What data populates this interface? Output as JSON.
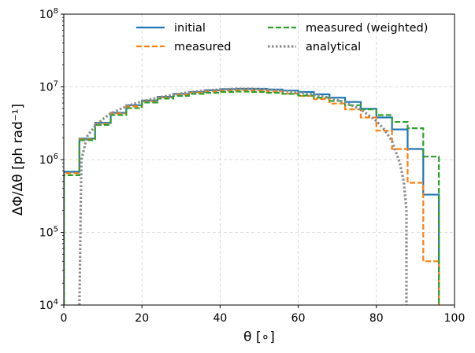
{
  "chart_data": {
    "type": "line",
    "plot_style": "step",
    "xlabel": "θ [∘]",
    "ylabel": "ΔΦ/Δθ  [ph rad⁻¹]",
    "xlim": [
      0,
      100
    ],
    "ylim": [
      10000,
      100000000
    ],
    "yscale": "log",
    "grid": true,
    "legend_position": "top-center",
    "x_ticks": [
      {
        "value": 0,
        "label": "0"
      },
      {
        "value": 20,
        "label": "20"
      },
      {
        "value": 40,
        "label": "40"
      },
      {
        "value": 60,
        "label": "60"
      },
      {
        "value": 80,
        "label": "80"
      },
      {
        "value": 100,
        "label": "100"
      }
    ],
    "y_ticks": [
      {
        "value": 10000,
        "base": "10",
        "exp": "4"
      },
      {
        "value": 100000,
        "base": "10",
        "exp": "5"
      },
      {
        "value": 1000000,
        "base": "10",
        "exp": "6"
      },
      {
        "value": 10000000,
        "base": "10",
        "exp": "7"
      },
      {
        "value": 100000000,
        "base": "10",
        "exp": "8"
      }
    ],
    "bin_edges": [
      0,
      4,
      8,
      12,
      16,
      20,
      24,
      28,
      32,
      36,
      40,
      44,
      48,
      52,
      56,
      60,
      64,
      68,
      72,
      76,
      80,
      84,
      88,
      92,
      96
    ],
    "series": [
      {
        "name": "initial",
        "color": "#1f77b4",
        "dash": "solid",
        "values": [
          680000,
          1950000,
          3200000,
          4400000,
          5600000,
          6500000,
          7300000,
          8000000,
          8500000,
          9000000,
          9300000,
          9400000,
          9400000,
          9200000,
          8900000,
          8500000,
          7900000,
          7100000,
          6200000,
          5000000,
          3800000,
          2600000,
          1400000,
          330000,
          25000
        ]
      },
      {
        "name": "measured",
        "color": "#ff7f0e",
        "dash": "dashed",
        "values": [
          650000,
          1900000,
          3100000,
          4300000,
          5400000,
          6300000,
          7100000,
          7800000,
          8300000,
          8700000,
          8900000,
          9000000,
          8900000,
          8600000,
          8100000,
          7500000,
          6800000,
          5900000,
          4900000,
          3800000,
          2500000,
          1400000,
          480000,
          40000,
          null
        ]
      },
      {
        "name": "measured (weighted)",
        "color": "#2ca02c",
        "dash": "dashed",
        "values": [
          610000,
          1850000,
          3000000,
          4100000,
          5100000,
          6100000,
          6900000,
          7500000,
          8000000,
          8300000,
          8500000,
          8600000,
          8500000,
          8300000,
          8000000,
          7600000,
          7100000,
          6400000,
          5600000,
          4900000,
          4100000,
          3300000,
          2700000,
          1100000,
          null
        ]
      },
      {
        "name": "analytical",
        "color": "#8c8c8c",
        "dash": "dotted",
        "type": "curve",
        "x": [
          4,
          4.5,
          6,
          8,
          10,
          12,
          16,
          20,
          24,
          28,
          32,
          36,
          40,
          44,
          48,
          52,
          56,
          60,
          64,
          68,
          72,
          76,
          80,
          82,
          84,
          86,
          87,
          87.7,
          87.7
        ],
        "values": [
          10000,
          1000000,
          2100000,
          2900000,
          3600000,
          4300000,
          5400000,
          6300000,
          7100000,
          7800000,
          8400000,
          8900000,
          9200000,
          9400000,
          9400000,
          9200000,
          8900000,
          8400000,
          7800000,
          7100000,
          6100000,
          4900000,
          3400000,
          2600000,
          1800000,
          900000,
          500000,
          200000,
          10000
        ]
      }
    ]
  }
}
